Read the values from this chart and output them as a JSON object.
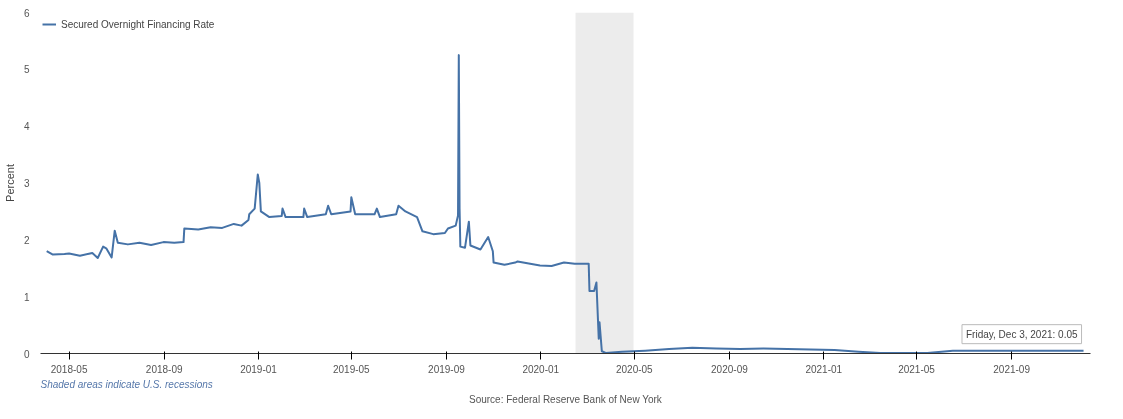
{
  "chart_data": {
    "type": "line",
    "ylabel": "Percent",
    "x": [
      "2018-04-02",
      "2018-04-10",
      "2018-04-25",
      "2018-05-01",
      "2018-05-15",
      "2018-05-31",
      "2018-06-07",
      "2018-06-14",
      "2018-06-18",
      "2018-06-25",
      "2018-06-29",
      "2018-07-03",
      "2018-07-16",
      "2018-07-31",
      "2018-08-15",
      "2018-08-31",
      "2018-09-14",
      "2018-09-26",
      "2018-09-27",
      "2018-10-15",
      "2018-10-31",
      "2018-11-15",
      "2018-11-30",
      "2018-12-10",
      "2018-12-19",
      "2018-12-20",
      "2018-12-27",
      "2018-12-31",
      "2019-01-02",
      "2019-01-04",
      "2019-01-15",
      "2019-01-31",
      "2019-02-01",
      "2019-02-05",
      "2019-02-28",
      "2019-03-01",
      "2019-03-05",
      "2019-03-29",
      "2019-04-01",
      "2019-04-05",
      "2019-04-30",
      "2019-05-01",
      "2019-05-06",
      "2019-05-31",
      "2019-06-03",
      "2019-06-07",
      "2019-06-28",
      "2019-07-01",
      "2019-07-10",
      "2019-07-25",
      "2019-08-01",
      "2019-08-15",
      "2019-08-30",
      "2019-09-03",
      "2019-09-13",
      "2019-09-16",
      "2019-09-17",
      "2019-09-18",
      "2019-09-19",
      "2019-09-25",
      "2019-09-30",
      "2019-10-02",
      "2019-10-15",
      "2019-10-25",
      "2019-10-31",
      "2019-11-01",
      "2019-11-15",
      "2019-11-29",
      "2019-12-02",
      "2019-12-31",
      "2020-01-15",
      "2020-01-31",
      "2020-02-14",
      "2020-02-28",
      "2020-03-03",
      "2020-03-04",
      "2020-03-10",
      "2020-03-13",
      "2020-03-16",
      "2020-03-17",
      "2020-03-20",
      "2020-03-25",
      "2020-04-15",
      "2020-05-15",
      "2020-06-15",
      "2020-07-15",
      "2020-08-15",
      "2020-09-15",
      "2020-10-15",
      "2020-11-15",
      "2020-12-15",
      "2021-01-15",
      "2021-02-15",
      "2021-03-15",
      "2021-04-15",
      "2021-05-15",
      "2021-06-17",
      "2021-07-15",
      "2021-08-15",
      "2021-09-15",
      "2021-10-15",
      "2021-11-15",
      "2021-12-03"
    ],
    "series": [
      {
        "name": "Secured Overnight Financing Rate",
        "color": "#4572a7",
        "values": [
          1.8,
          1.74,
          1.75,
          1.76,
          1.72,
          1.77,
          1.68,
          1.88,
          1.85,
          1.69,
          2.16,
          1.95,
          1.92,
          1.95,
          1.91,
          1.96,
          1.95,
          1.96,
          2.2,
          2.18,
          2.22,
          2.21,
          2.28,
          2.25,
          2.35,
          2.45,
          2.55,
          3.15,
          3.0,
          2.5,
          2.4,
          2.42,
          2.55,
          2.4,
          2.4,
          2.55,
          2.4,
          2.45,
          2.6,
          2.45,
          2.5,
          2.75,
          2.45,
          2.45,
          2.55,
          2.4,
          2.45,
          2.6,
          2.5,
          2.4,
          2.15,
          2.1,
          2.12,
          2.2,
          2.25,
          2.43,
          5.25,
          2.55,
          1.88,
          1.86,
          2.32,
          1.9,
          1.83,
          2.05,
          1.8,
          1.6,
          1.56,
          1.6,
          1.62,
          1.55,
          1.54,
          1.6,
          1.58,
          1.58,
          1.58,
          1.1,
          1.1,
          1.25,
          0.26,
          0.55,
          0.04,
          0.01,
          0.03,
          0.05,
          0.08,
          0.1,
          0.09,
          0.08,
          0.09,
          0.08,
          0.07,
          0.06,
          0.03,
          0.01,
          0.01,
          0.01,
          0.05,
          0.05,
          0.05,
          0.05,
          0.05,
          0.05,
          0.05
        ]
      }
    ],
    "xlim": [
      "2018-03-25",
      "2021-12-12"
    ],
    "xticks": [
      "2018-05",
      "2018-09",
      "2019-01",
      "2019-05",
      "2019-09",
      "2020-01",
      "2020-05",
      "2020-09",
      "2021-01",
      "2021-05",
      "2021-09"
    ],
    "ylim": [
      0,
      6
    ],
    "yticks": [
      0,
      1,
      2,
      3,
      4,
      5,
      6
    ],
    "bands": [
      {
        "axis": "x",
        "from": "2020-02-15",
        "to": "2020-04-30",
        "color": "#ececec"
      }
    ],
    "legend": "top left",
    "annotations": [
      {
        "text": "Friday, Dec 3, 2021: 0.05",
        "x": "2021-12-03",
        "y": 0.05
      },
      "Shaded areas indicate U.S. recessions",
      "Source: Federal Reserve Bank of New York"
    ]
  }
}
